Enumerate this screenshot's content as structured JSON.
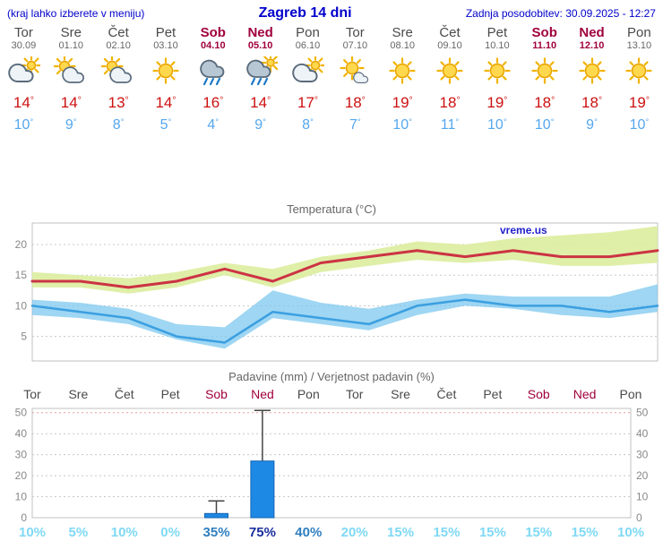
{
  "header": {
    "left_note": "(kraj lahko izberete v meniju)",
    "title": "Zagreb 14 dni",
    "updated": "Zadnja posodobitev: 30.09.2025 - 12:27"
  },
  "symbols": {
    "degree": "°",
    "percent": "%"
  },
  "colors": {
    "header_blue": "#0000cc",
    "day_text": "#4a4a4a",
    "date_text": "#666666",
    "weekend_text": "#a0003c",
    "temp_high": "#cc1111",
    "temp_low": "#55a7ee",
    "chart_title": "#666666",
    "axis_text": "#888888",
    "grid": "#c8c8c8",
    "grid_50": "#e8a0a0",
    "frame": "#c0c0c0",
    "max_line": "#cc3344",
    "min_line": "#3b9fe0",
    "max_band": "#dced9e",
    "min_band": "#7ec8ef",
    "bar_fill": "#1e88e5",
    "bar_stroke": "#1266b0",
    "whisker": "#444444",
    "prob_high": "#1b2f9e",
    "prob_mid": "#2f7fc1",
    "prob_low": "#7fd9f5",
    "watermark": "#2222cc",
    "rain_drop": "#1c78c8"
  },
  "days": [
    {
      "name": "Tor",
      "date": "30.09",
      "weekend": false,
      "icon": "cloudy",
      "tmax": 14,
      "tmin": 10
    },
    {
      "name": "Sre",
      "date": "01.10",
      "weekend": false,
      "icon": "partly-cloudy",
      "tmax": 14,
      "tmin": 9
    },
    {
      "name": "Čet",
      "date": "02.10",
      "weekend": false,
      "icon": "partly-cloudy",
      "tmax": 13,
      "tmin": 8
    },
    {
      "name": "Pet",
      "date": "03.10",
      "weekend": false,
      "icon": "sunny",
      "tmax": 14,
      "tmin": 5
    },
    {
      "name": "Sob",
      "date": "04.10",
      "weekend": true,
      "icon": "rain",
      "tmax": 16,
      "tmin": 4
    },
    {
      "name": "Ned",
      "date": "05.10",
      "weekend": true,
      "icon": "rain-showers",
      "tmax": 14,
      "tmin": 9
    },
    {
      "name": "Pon",
      "date": "06.10",
      "weekend": false,
      "icon": "cloudy",
      "tmax": 17,
      "tmin": 8
    },
    {
      "name": "Tor",
      "date": "07.10",
      "weekend": false,
      "icon": "mostly-sunny",
      "tmax": 18,
      "tmin": 7
    },
    {
      "name": "Sre",
      "date": "08.10",
      "weekend": false,
      "icon": "sunny",
      "tmax": 19,
      "tmin": 10
    },
    {
      "name": "Čet",
      "date": "09.10",
      "weekend": false,
      "icon": "sunny",
      "tmax": 18,
      "tmin": 11
    },
    {
      "name": "Pet",
      "date": "10.10",
      "weekend": false,
      "icon": "sunny",
      "tmax": 19,
      "tmin": 10
    },
    {
      "name": "Sob",
      "date": "11.10",
      "weekend": true,
      "icon": "sunny",
      "tmax": 18,
      "tmin": 10
    },
    {
      "name": "Ned",
      "date": "12.10",
      "weekend": true,
      "icon": "sunny",
      "tmax": 18,
      "tmin": 9
    },
    {
      "name": "Pon",
      "date": "13.10",
      "weekend": false,
      "icon": "sunny",
      "tmax": 19,
      "tmin": 10
    }
  ],
  "chart_data": [
    {
      "type": "line",
      "title": "Temperatura (°C)",
      "x_labels": [
        "Tor",
        "Sre",
        "Čet",
        "Pet",
        "Sob",
        "Ned",
        "Pon",
        "Tor",
        "Sre",
        "Čet",
        "Pet",
        "Sob",
        "Ned",
        "Pon"
      ],
      "ylim": [
        1,
        23.5
      ],
      "yticks": [
        5,
        10,
        15,
        20
      ],
      "grid": true,
      "legend": "none",
      "watermark": "vreme.us",
      "series": [
        {
          "name": "max_temp",
          "values": [
            14,
            14,
            13,
            14,
            16,
            14,
            17,
            18,
            19,
            18,
            19,
            18,
            18,
            19
          ]
        },
        {
          "name": "min_temp",
          "values": [
            10,
            9,
            8,
            5,
            4,
            9,
            8,
            7,
            10,
            11,
            10,
            10,
            9,
            10
          ]
        }
      ],
      "bands": [
        {
          "name": "max_temp_range",
          "upper": [
            15.5,
            15,
            14.5,
            15.5,
            17,
            16,
            18,
            19,
            20.5,
            20,
            21,
            21.5,
            22,
            23
          ],
          "lower": [
            13,
            13,
            12,
            13,
            15,
            13,
            15.5,
            16.5,
            17.5,
            17,
            17.5,
            16.5,
            16.5,
            17
          ]
        },
        {
          "name": "min_temp_range",
          "upper": [
            11,
            10.5,
            9.5,
            7,
            6.5,
            12.5,
            10.5,
            9.5,
            11,
            12,
            11.5,
            11.5,
            11.5,
            13.5
          ],
          "lower": [
            8.5,
            8,
            7,
            4.5,
            3,
            8,
            7,
            6,
            8.5,
            10,
            9.5,
            8.5,
            8,
            9
          ]
        }
      ]
    },
    {
      "type": "bar",
      "title": "Padavine (mm) / Verjetnost padavin (%)",
      "categories": [
        "Tor",
        "Sre",
        "Čet",
        "Pet",
        "Sob",
        "Ned",
        "Pon",
        "Tor",
        "Sre",
        "Čet",
        "Pet",
        "Sob",
        "Ned",
        "Pon"
      ],
      "weekend_flags": [
        false,
        false,
        false,
        false,
        true,
        true,
        false,
        false,
        false,
        false,
        false,
        true,
        true,
        false
      ],
      "precip_mm": [
        0,
        0,
        0,
        0,
        2,
        27,
        0,
        0,
        0,
        0,
        0,
        0,
        0,
        0
      ],
      "precip_max_mm": [
        0,
        0,
        0,
        0,
        8,
        51,
        0,
        0,
        0,
        0,
        0,
        0,
        0,
        0
      ],
      "probability_pct": [
        10,
        5,
        10,
        0,
        35,
        75,
        40,
        20,
        15,
        15,
        15,
        15,
        15,
        10
      ],
      "ylim": [
        0,
        52
      ],
      "yticks": [
        0,
        10,
        20,
        30,
        40,
        50
      ],
      "grid": true
    }
  ]
}
